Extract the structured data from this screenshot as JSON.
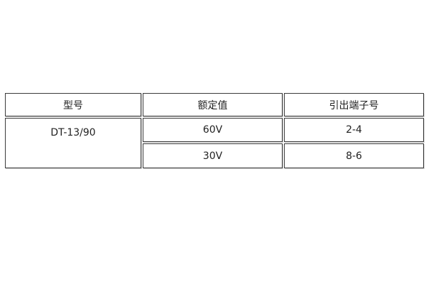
{
  "table": {
    "headers": [
      "型号",
      "额定值",
      "引出端子号"
    ],
    "model": "DT-13/90",
    "rows": [
      {
        "rating": "60V",
        "terminals": "2-4"
      },
      {
        "rating": "30V",
        "terminals": "8-6"
      }
    ]
  }
}
